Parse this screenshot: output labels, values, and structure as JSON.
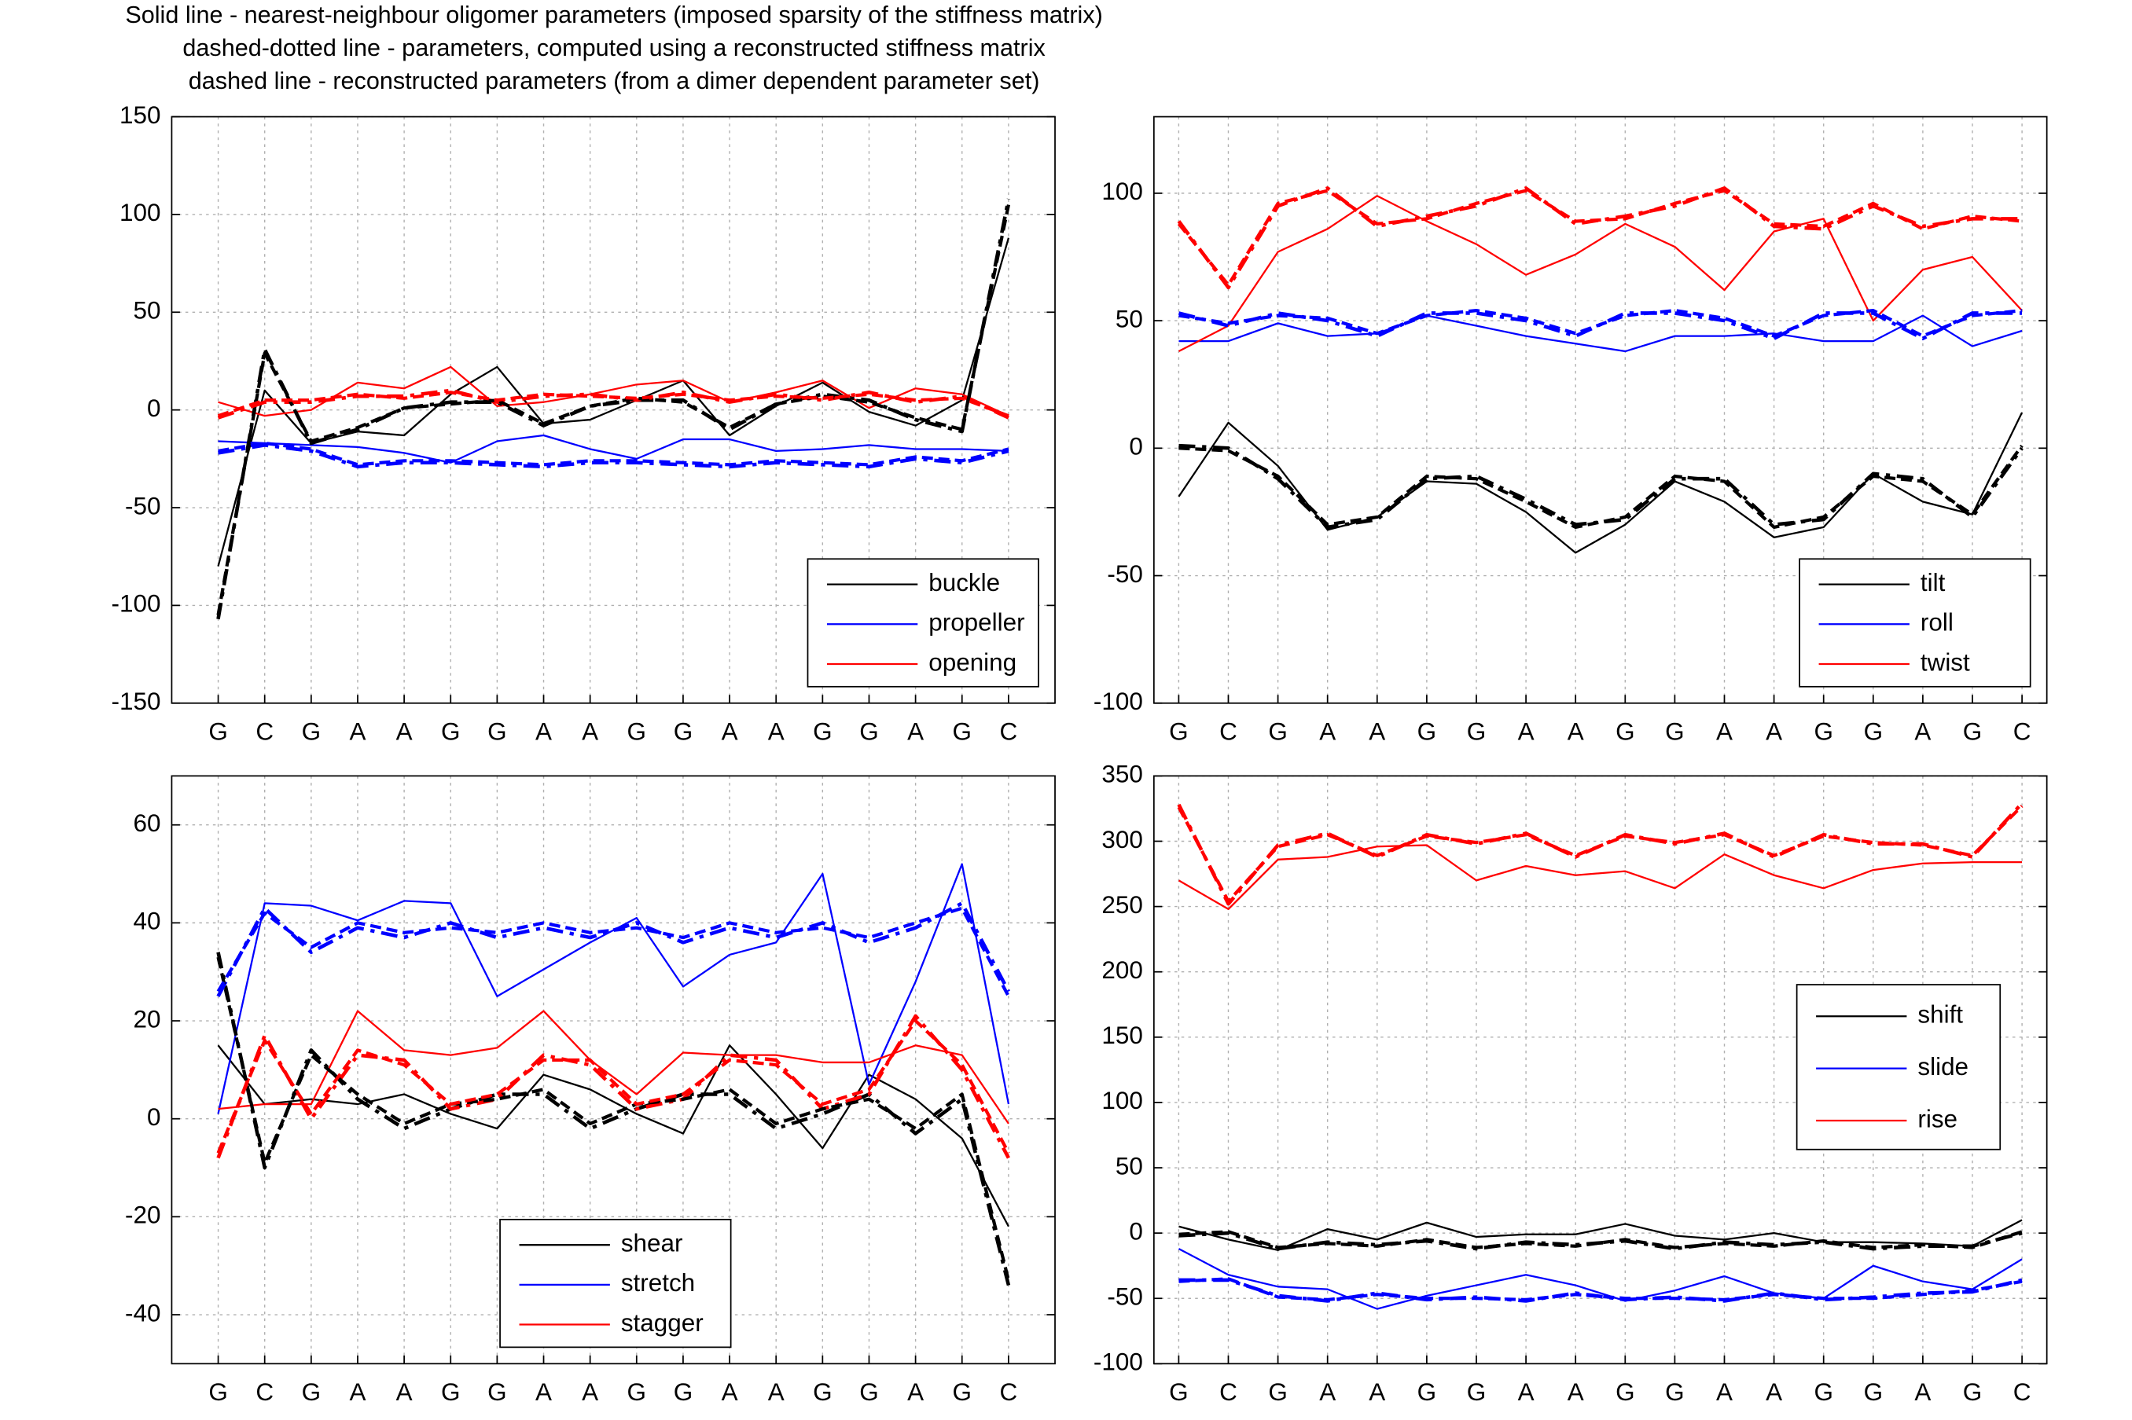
{
  "figure_title": [
    "Solid line - nearest-neighbour oligomer parameters (imposed sparsity of the stiffness matrix)",
    "dashed-dotted line - parameters, computed using a reconstructed stiffness matrix",
    "dashed line - reconstructed parameters (from a dimer dependent parameter set)"
  ],
  "chart_data": [
    {
      "type": "line",
      "categories": [
        "G",
        "C",
        "G",
        "A",
        "A",
        "G",
        "G",
        "A",
        "A",
        "G",
        "G",
        "A",
        "A",
        "G",
        "G",
        "A",
        "G",
        "C"
      ],
      "ylim": [
        -150,
        150
      ],
      "yticks": [
        -150,
        -100,
        -50,
        0,
        50,
        100,
        150
      ],
      "grid": true,
      "legend": "lower right",
      "series": [
        {
          "name": "buckle",
          "color": "#000000",
          "style": "solid",
          "values": [
            -80,
            10,
            -17,
            -11,
            -13,
            8,
            22,
            -7,
            -5,
            5,
            15,
            -13,
            2,
            14,
            -1,
            -8,
            5,
            88
          ]
        },
        {
          "name": "propeller",
          "color": "#0000ff",
          "style": "solid",
          "values": [
            -16,
            -17,
            -18,
            -19,
            -22,
            -27,
            -16,
            -13,
            -20,
            -25,
            -15,
            -15,
            -21,
            -20,
            -18,
            -20,
            -20,
            -21
          ]
        },
        {
          "name": "opening",
          "color": "#ff0000",
          "style": "solid",
          "values": [
            4,
            -3,
            0,
            14,
            11,
            22,
            2,
            4,
            8,
            13,
            15,
            4,
            9,
            15,
            1,
            11,
            8,
            -3
          ]
        },
        {
          "color": "#000000",
          "style": "dashdot",
          "values": [
            -107,
            31,
            -17,
            -10,
            1,
            4,
            4,
            -8,
            2,
            5,
            5,
            -10,
            3,
            8,
            5,
            -5,
            -11,
            108
          ]
        },
        {
          "color": "#0000ff",
          "style": "dashdot",
          "values": [
            -22,
            -18,
            -21,
            -29,
            -27,
            -27,
            -28,
            -29,
            -27,
            -27,
            -28,
            -29,
            -27,
            -28,
            -29,
            -25,
            -27,
            -21
          ]
        },
        {
          "color": "#ff0000",
          "style": "dashdot",
          "values": [
            -4,
            4,
            4,
            7,
            7,
            10,
            4,
            7,
            8,
            5,
            9,
            4,
            8,
            5,
            9,
            4,
            7,
            -4
          ]
        },
        {
          "color": "#000000",
          "style": "dashed",
          "values": [
            -105,
            29,
            -16,
            -9,
            1,
            3,
            5,
            -7,
            2,
            6,
            4,
            -9,
            3,
            7,
            4,
            -4,
            -10,
            105
          ]
        },
        {
          "color": "#0000ff",
          "style": "dashed",
          "values": [
            -21,
            -17,
            -20,
            -28,
            -26,
            -26,
            -27,
            -28,
            -26,
            -26,
            -27,
            -28,
            -26,
            -27,
            -28,
            -24,
            -26,
            -20
          ]
        },
        {
          "color": "#ff0000",
          "style": "dashed",
          "values": [
            -3,
            5,
            5,
            8,
            6,
            9,
            5,
            8,
            7,
            6,
            8,
            5,
            7,
            6,
            8,
            5,
            6,
            -3
          ]
        }
      ]
    },
    {
      "type": "line",
      "categories": [
        "G",
        "C",
        "G",
        "A",
        "A",
        "G",
        "G",
        "A",
        "A",
        "G",
        "G",
        "A",
        "A",
        "G",
        "G",
        "A",
        "G",
        "C"
      ],
      "ylim": [
        -100,
        130
      ],
      "yticks": [
        -100,
        -50,
        0,
        50,
        100
      ],
      "grid": true,
      "legend": "lower right",
      "series": [
        {
          "name": "tilt",
          "color": "#000000",
          "style": "solid",
          "values": [
            -19,
            10,
            -7,
            -32,
            -27,
            -13,
            -14,
            -25,
            -41,
            -30,
            -13,
            -21,
            -35,
            -31,
            -10,
            -21,
            -26,
            14
          ]
        },
        {
          "name": "roll",
          "color": "#0000ff",
          "style": "solid",
          "values": [
            42,
            42,
            49,
            44,
            45,
            52,
            48,
            44,
            41,
            38,
            44,
            44,
            45,
            42,
            42,
            52,
            40,
            46
          ]
        },
        {
          "name": "twist",
          "color": "#ff0000",
          "style": "solid",
          "values": [
            38,
            48,
            77,
            86,
            99,
            89,
            80,
            68,
            76,
            88,
            79,
            62,
            85,
            90,
            50,
            70,
            75,
            54
          ]
        },
        {
          "color": "#000000",
          "style": "dashdot",
          "values": [
            1,
            0,
            -12,
            -31,
            -28,
            -12,
            -11,
            -20,
            -30,
            -28,
            -12,
            -12,
            -30,
            -28,
            -10,
            -12,
            -27,
            0
          ]
        },
        {
          "color": "#0000ff",
          "style": "dashdot",
          "values": [
            53,
            48,
            53,
            50,
            44,
            53,
            53,
            50,
            44,
            53,
            53,
            50,
            43,
            53,
            53,
            43,
            53,
            53
          ]
        },
        {
          "color": "#ff0000",
          "style": "dashdot",
          "values": [
            89,
            63,
            95,
            102,
            87,
            91,
            95,
            102,
            88,
            91,
            95,
            102,
            87,
            86,
            95,
            87,
            90,
            90
          ]
        },
        {
          "color": "#000000",
          "style": "dashed",
          "values": [
            0,
            -1,
            -11,
            -30,
            -27,
            -11,
            -12,
            -21,
            -31,
            -27,
            -11,
            -13,
            -31,
            -27,
            -11,
            -13,
            -26,
            1
          ]
        },
        {
          "color": "#0000ff",
          "style": "dashed",
          "values": [
            52,
            49,
            52,
            51,
            45,
            52,
            54,
            51,
            45,
            52,
            54,
            51,
            44,
            52,
            54,
            44,
            52,
            54
          ]
        },
        {
          "color": "#ff0000",
          "style": "dashed",
          "values": [
            88,
            64,
            96,
            101,
            88,
            90,
            96,
            101,
            89,
            90,
            96,
            101,
            88,
            87,
            96,
            86,
            91,
            89
          ]
        }
      ]
    },
    {
      "type": "line",
      "categories": [
        "G",
        "C",
        "G",
        "A",
        "A",
        "G",
        "G",
        "A",
        "A",
        "G",
        "G",
        "A",
        "A",
        "G",
        "G",
        "A",
        "G",
        "C"
      ],
      "ylim": [
        -50,
        70
      ],
      "yticks": [
        -40,
        -20,
        0,
        20,
        40,
        60
      ],
      "grid": true,
      "legend": "lower center",
      "series": [
        {
          "name": "shear",
          "color": "#000000",
          "style": "solid",
          "values": [
            15,
            3,
            4,
            3,
            5,
            1,
            -2,
            9,
            6,
            1,
            -3,
            15,
            5,
            -6,
            9,
            4,
            -4,
            -22
          ]
        },
        {
          "name": "stretch",
          "color": "#0000ff",
          "style": "solid",
          "values": [
            1,
            44,
            43.5,
            40.5,
            44.5,
            44,
            25,
            30.5,
            36,
            41,
            27,
            33.5,
            36,
            50,
            7,
            28,
            52,
            3
          ]
        },
        {
          "name": "stagger",
          "color": "#ff0000",
          "style": "solid",
          "values": [
            2,
            3,
            3,
            22,
            14,
            13,
            14.5,
            22,
            12,
            5,
            13.5,
            13,
            13,
            11.5,
            11.5,
            15,
            13,
            -1
          ]
        },
        {
          "color": "#000000",
          "style": "dashdot",
          "values": [
            34,
            -10,
            14,
            4,
            -2,
            2,
            5,
            5,
            -2,
            2,
            5,
            5,
            -2,
            1,
            5,
            -3,
            4,
            -34
          ]
        },
        {
          "color": "#0000ff",
          "style": "dashdot",
          "values": [
            25,
            43,
            34,
            39,
            37,
            40,
            37,
            39,
            37,
            40,
            36,
            39,
            37,
            40,
            36,
            39,
            44,
            26
          ]
        },
        {
          "color": "#ff0000",
          "style": "dashdot",
          "values": [
            -8,
            17,
            0,
            13,
            12,
            2,
            4,
            13,
            11,
            2,
            4,
            13,
            12,
            2,
            5,
            21,
            10,
            -8
          ]
        },
        {
          "color": "#000000",
          "style": "dashed",
          "values": [
            33,
            -9,
            13,
            5,
            -1,
            3,
            4,
            6,
            -1,
            3,
            4,
            6,
            -1,
            2,
            4,
            -2,
            5,
            -33
          ]
        },
        {
          "color": "#0000ff",
          "style": "dashed",
          "values": [
            26,
            42,
            35,
            40,
            38,
            39,
            38,
            40,
            38,
            39,
            37,
            40,
            38,
            39,
            37,
            40,
            43,
            25
          ]
        },
        {
          "color": "#ff0000",
          "style": "dashed",
          "values": [
            -7,
            16,
            1,
            14,
            11,
            3,
            5,
            12,
            12,
            3,
            5,
            12,
            11,
            3,
            6,
            20,
            11,
            -7
          ]
        }
      ]
    },
    {
      "type": "line",
      "categories": [
        "G",
        "C",
        "G",
        "A",
        "A",
        "G",
        "G",
        "A",
        "A",
        "G",
        "G",
        "A",
        "A",
        "G",
        "G",
        "A",
        "G",
        "C"
      ],
      "ylim": [
        -100,
        350
      ],
      "yticks": [
        -100,
        -50,
        0,
        50,
        100,
        150,
        200,
        250,
        300,
        350
      ],
      "grid": true,
      "legend": "center right",
      "series": [
        {
          "name": "shift",
          "color": "#000000",
          "style": "solid",
          "values": [
            5,
            -5,
            -13,
            3,
            -5,
            8,
            -3,
            -1,
            -1,
            7,
            -2,
            -5,
            0,
            -7,
            -7,
            -8,
            -10,
            10
          ]
        },
        {
          "name": "slide",
          "color": "#0000ff",
          "style": "solid",
          "values": [
            -12,
            -32,
            -41,
            -43,
            -58,
            -48,
            -40,
            -32,
            -40,
            -52,
            -44,
            -33,
            -46,
            -50,
            -25,
            -37,
            -43,
            -20
          ]
        },
        {
          "name": "rise",
          "color": "#ff0000",
          "style": "solid",
          "values": [
            270,
            248,
            286,
            288,
            296,
            297,
            270,
            281,
            274,
            277,
            264,
            290,
            274,
            264,
            278,
            283,
            284,
            284
          ]
        },
        {
          "color": "#000000",
          "style": "dashdot",
          "values": [
            -2,
            0,
            -12,
            -7,
            -9,
            -6,
            -12,
            -7,
            -9,
            -6,
            -12,
            -7,
            -9,
            -7,
            -12,
            -10,
            -10,
            0
          ]
        },
        {
          "color": "#0000ff",
          "style": "dashdot",
          "values": [
            -36,
            -36,
            -48,
            -52,
            -46,
            -51,
            -49,
            -52,
            -46,
            -51,
            -49,
            -52,
            -46,
            -51,
            -49,
            -46,
            -45,
            -36
          ]
        },
        {
          "color": "#ff0000",
          "style": "dashdot",
          "values": [
            328,
            252,
            297,
            306,
            288,
            305,
            298,
            306,
            288,
            305,
            298,
            306,
            288,
            305,
            298,
            298,
            288,
            329
          ]
        },
        {
          "color": "#000000",
          "style": "dashed",
          "values": [
            -1,
            1,
            -11,
            -8,
            -10,
            -5,
            -11,
            -8,
            -10,
            -5,
            -11,
            -8,
            -10,
            -6,
            -11,
            -9,
            -11,
            1
          ]
        },
        {
          "color": "#0000ff",
          "style": "dashed",
          "values": [
            -37,
            -35,
            -49,
            -51,
            -47,
            -50,
            -50,
            -51,
            -47,
            -50,
            -50,
            -51,
            -47,
            -50,
            -50,
            -47,
            -44,
            -37
          ]
        },
        {
          "color": "#ff0000",
          "style": "dashed",
          "values": [
            326,
            254,
            296,
            305,
            289,
            304,
            299,
            305,
            289,
            304,
            299,
            305,
            289,
            304,
            299,
            297,
            289,
            327
          ]
        }
      ]
    }
  ]
}
